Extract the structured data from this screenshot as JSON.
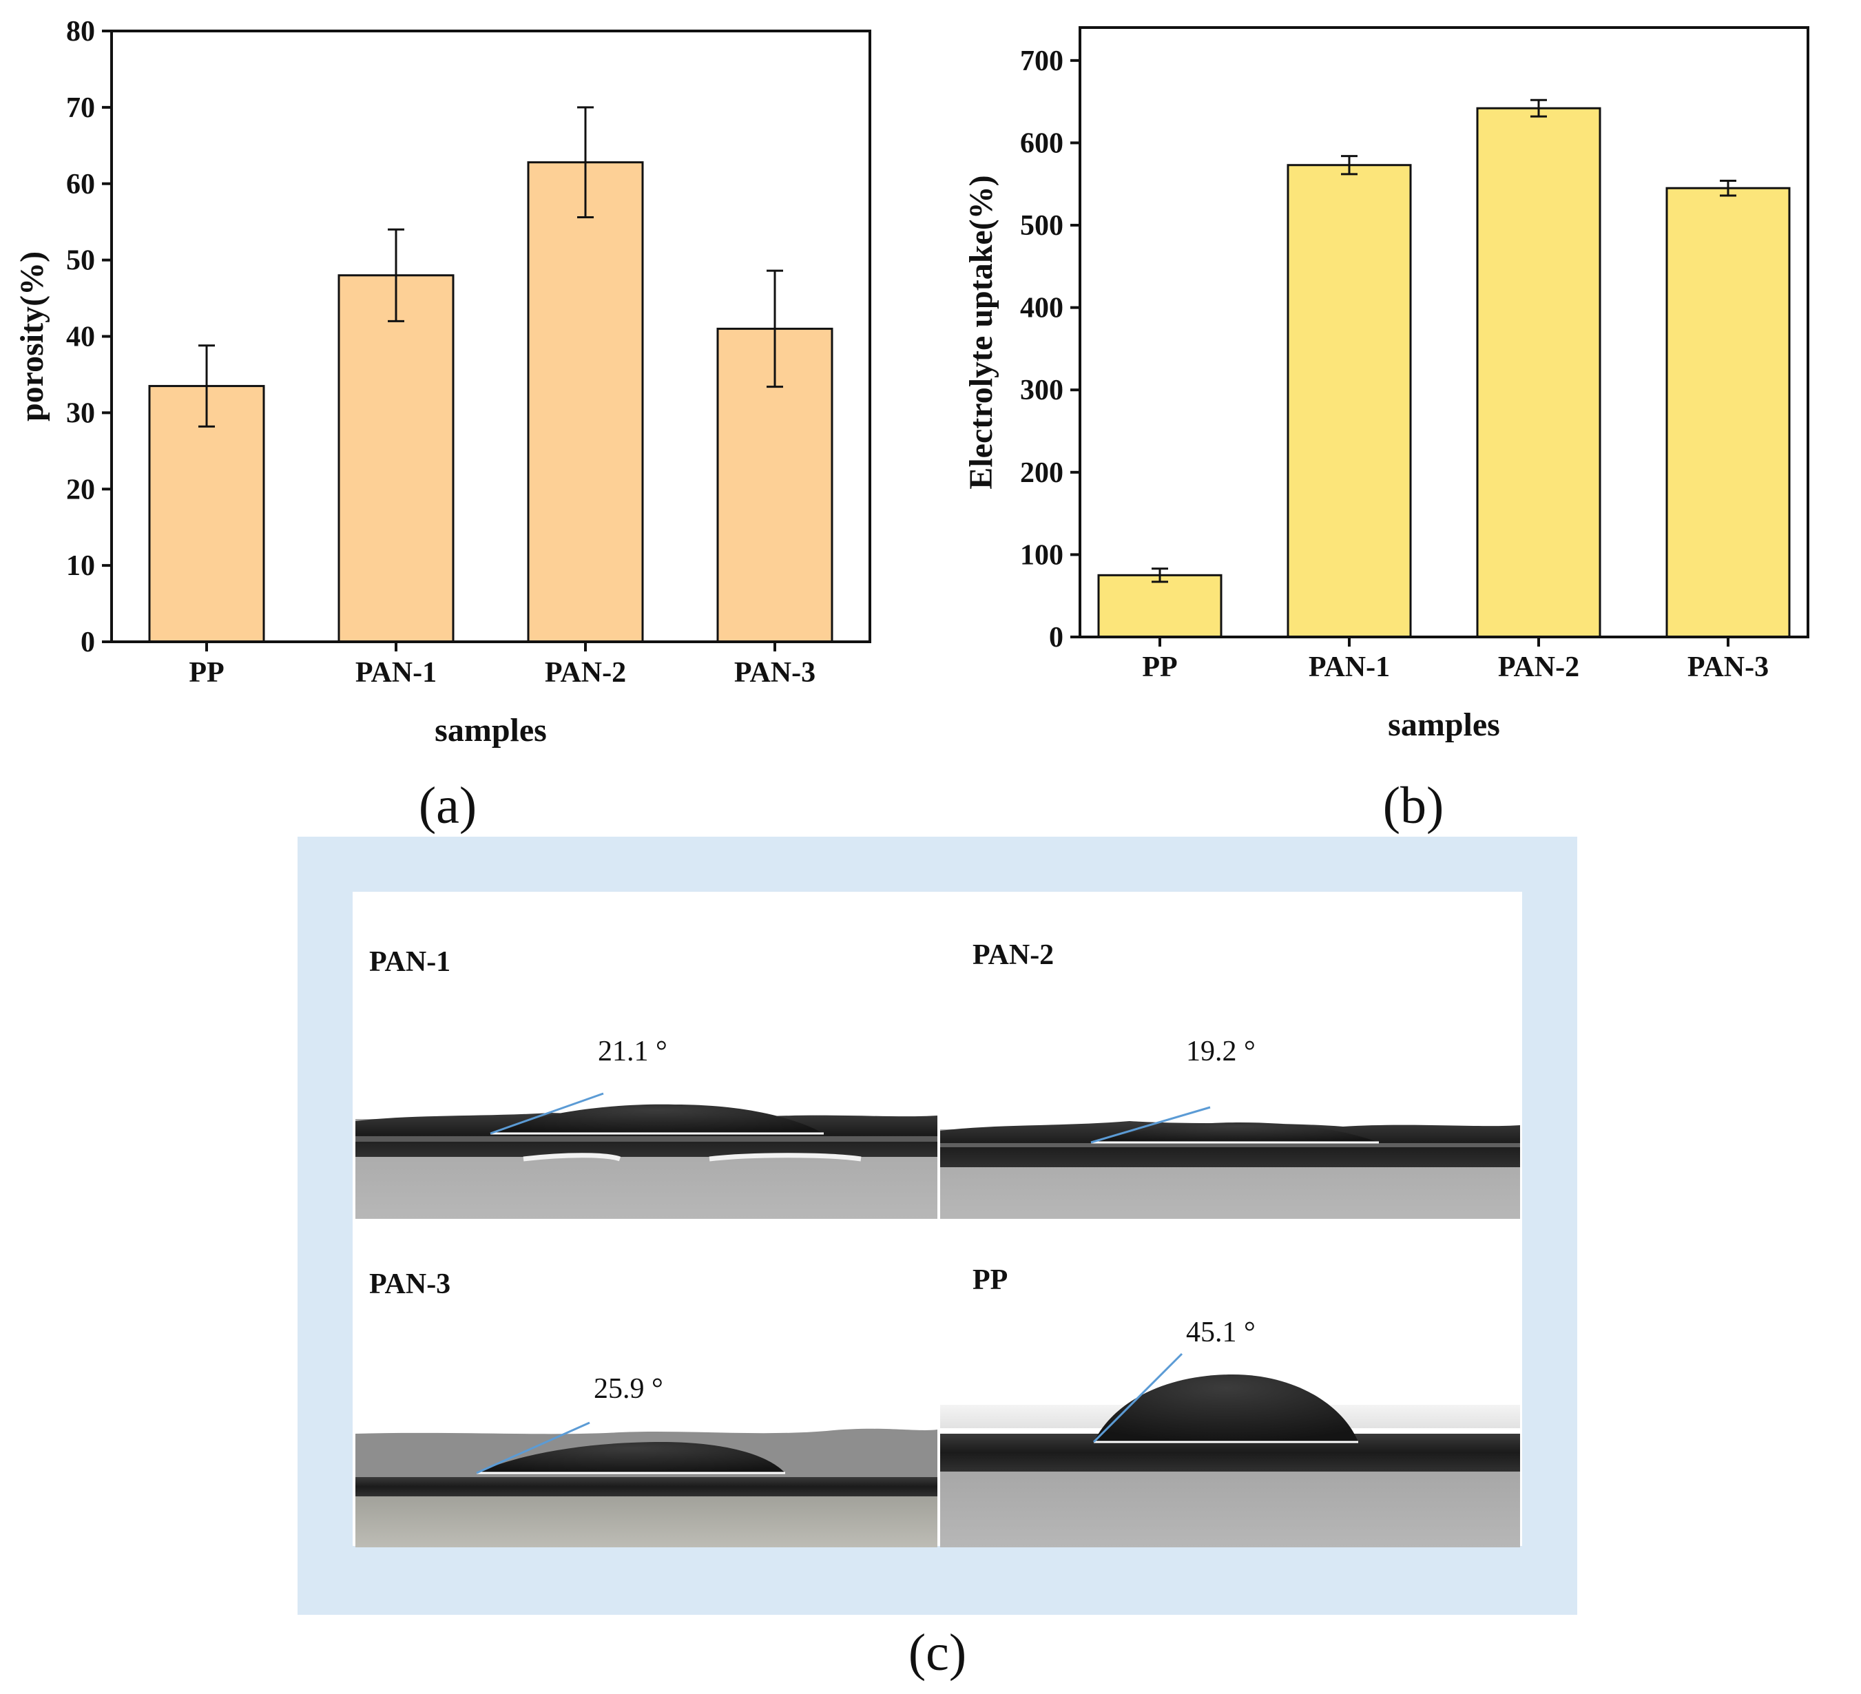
{
  "colors": {
    "porosity_bar": "#FDD096",
    "uptake_bar": "#FCE57A",
    "photo_frame": "#D9E8F5",
    "axis": "#111111",
    "angle_line": "#5B9BD5",
    "baseline": "#FFFFFF"
  },
  "chart_data": [
    {
      "type": "bar",
      "panel": "(a)",
      "categories": [
        "PP",
        "PAN-1",
        "PAN-2",
        "PAN-3"
      ],
      "values": [
        33.5,
        48,
        62.8,
        41
      ],
      "error": [
        5.3,
        6,
        7.2,
        7.6
      ],
      "title": "",
      "xlabel": "samples",
      "ylabel": "porosity(%)",
      "ylim": [
        0,
        80
      ],
      "yticks": [
        0,
        10,
        20,
        30,
        40,
        50,
        60,
        70,
        80
      ],
      "grid": false
    },
    {
      "type": "bar",
      "panel": "(b)",
      "categories": [
        "PP",
        "PAN-1",
        "PAN-2",
        "PAN-3"
      ],
      "values": [
        75,
        573,
        642,
        545
      ],
      "error": [
        8,
        11,
        10,
        9
      ],
      "title": "",
      "xlabel": "samples",
      "ylabel": "Electrolyte uptake(%)",
      "ylim": [
        0,
        740
      ],
      "yticks": [
        0,
        100,
        200,
        300,
        400,
        500,
        600,
        700
      ],
      "grid": false
    }
  ],
  "contact_angle_panel": {
    "panel_label": "(c)",
    "images": [
      {
        "sample": "PAN-1",
        "angle": "21.1 °",
        "angle_value": 21.1
      },
      {
        "sample": "PAN-2",
        "angle": "19.2 °",
        "angle_value": 19.2
      },
      {
        "sample": "PAN-3",
        "angle": "25.9 °",
        "angle_value": 25.9
      },
      {
        "sample": "PP",
        "angle": "45.1 °",
        "angle_value": 45.1
      }
    ]
  }
}
